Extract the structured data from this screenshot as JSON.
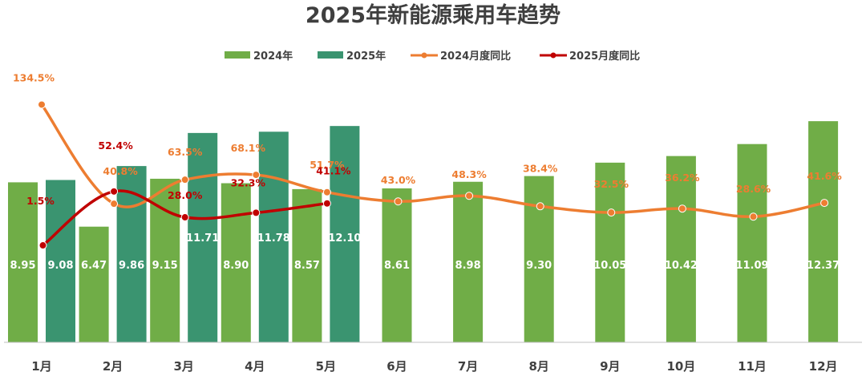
{
  "chart_data": {
    "type": "bar",
    "title": "2025年新能源乘用车趋势",
    "categories": [
      "1月",
      "2月",
      "3月",
      "4月",
      "5月",
      "6月",
      "7月",
      "8月",
      "9月",
      "10月",
      "11月",
      "12月"
    ],
    "series": [
      {
        "name": "2024年",
        "kind": "bar",
        "color": "#70ad47",
        "values": [
          8.95,
          6.47,
          9.15,
          8.9,
          8.57,
          8.61,
          8.98,
          9.3,
          10.05,
          10.42,
          11.09,
          12.37
        ]
      },
      {
        "name": "2025年",
        "kind": "bar",
        "color": "#3a9470",
        "values": [
          9.08,
          9.86,
          11.71,
          11.78,
          12.1,
          null,
          null,
          null,
          null,
          null,
          null,
          null
        ]
      },
      {
        "name": "2024月度同比",
        "kind": "line",
        "color": "#ed7d31",
        "values": [
          134.5,
          40.8,
          63.5,
          68.1,
          51.7,
          43.0,
          48.3,
          38.4,
          32.5,
          36.2,
          28.6,
          41.6
        ],
        "labels": [
          "134.5%",
          "40.8%",
          "63.5%",
          "68.1%",
          "51.7%",
          "43.0%",
          "48.3%",
          "38.4%",
          "32.5%",
          "36.2%",
          "28.6%",
          "41.6%"
        ]
      },
      {
        "name": "2025月度同比",
        "kind": "line",
        "color": "#c00000",
        "values": [
          1.5,
          52.4,
          28.0,
          32.3,
          41.1,
          null,
          null,
          null,
          null,
          null,
          null,
          null
        ],
        "labels": [
          "1.5%",
          "52.4%",
          "28.0%",
          "32.3%",
          "41.1%"
        ]
      }
    ],
    "legend": "top-center",
    "grid": false
  }
}
